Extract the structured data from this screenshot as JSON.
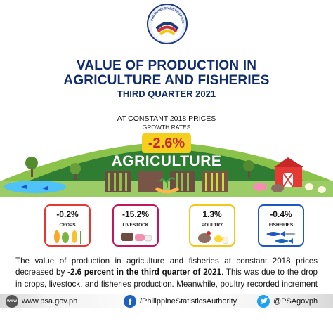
{
  "logo": {
    "ring_text": "PHILIPPINE STATISTICS AUTHORITY",
    "colors": {
      "blue": "#1f3a7a",
      "red": "#d32f2f",
      "yellow": "#f5c518"
    }
  },
  "header": {
    "title_line1": "VALUE OF PRODUCTION IN",
    "title_line2": "AGRICULTURE AND FISHERIES",
    "subtitle": "THIRD QUARTER 2021"
  },
  "prices_note": "AT CONSTANT 2018 PRICES",
  "growth_note": "GROWTH RATES",
  "agriculture": {
    "rate": "-2.6%",
    "label": "AGRICULTURE"
  },
  "subsectors": [
    {
      "rate": "-0.2%",
      "label": "CROPS",
      "color": "#e53935"
    },
    {
      "rate": "-15.2%",
      "label": "LIVESTOCK",
      "color": "#c2185b"
    },
    {
      "rate": "1.3%",
      "label": "POULTRY",
      "color": "#f5c518"
    },
    {
      "rate": "-0.4%",
      "label": "FISHERIES",
      "color": "#1e56c4"
    }
  ],
  "paragraph": {
    "part1": "The value of production in agriculture and fisheries at constant 2018 prices decreased by ",
    "bold": "-2.6 percent in the third quarter of 2021",
    "part2": ". This was due to the drop in crops, livestock, and fisheries production. Meanwhile, poultry recorded increment in production."
  },
  "footer": {
    "www_icon": "www",
    "website": "www.psa.gov.ph",
    "facebook_icon": "f",
    "facebook": "/PhilippineStatisticsAuthority",
    "twitter": "@PSAgovph"
  },
  "colors": {
    "navy": "#0f2b6b",
    "grass": "#2e7d32",
    "badge": "#f5cf1d"
  }
}
